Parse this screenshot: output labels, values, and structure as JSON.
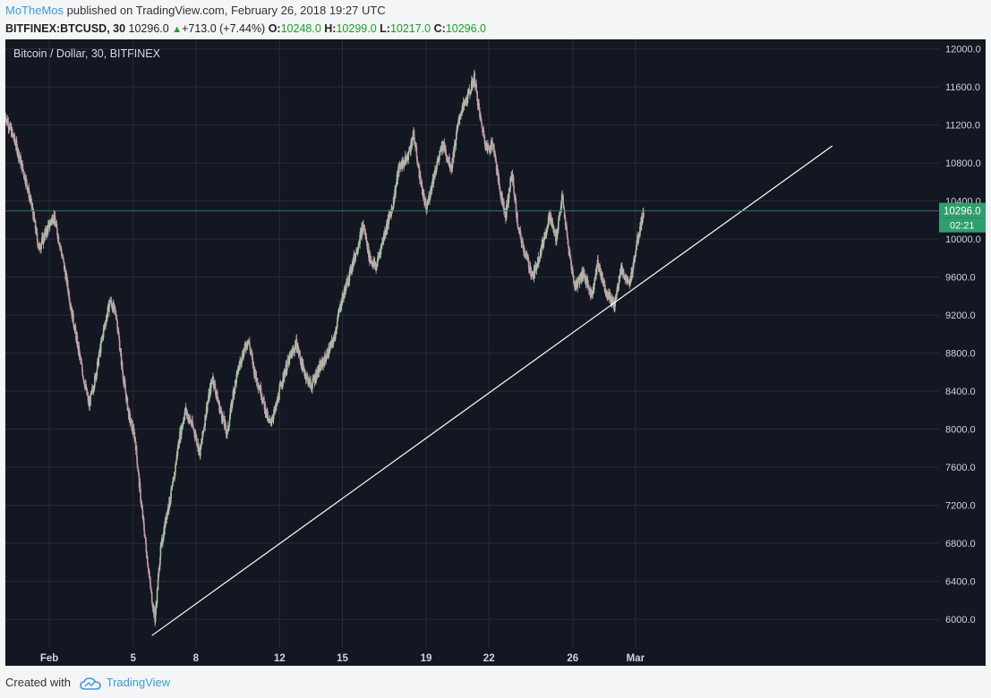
{
  "header": {
    "author": "MoTheMos",
    "published": "published on TradingView.com, February 26, 2018 19:27 UTC",
    "symbol": "BITFINEX:BTCUSD, 30",
    "last": "10296.0",
    "change": "+713.0 (+7.44%)",
    "o_label": "O:",
    "o_value": "10248.0",
    "h_label": "H:",
    "h_value": "10299.0",
    "l_label": "L:",
    "l_value": "10217.0",
    "c_label": "C:",
    "c_value": "10296.0"
  },
  "footer": {
    "created_with": "Created with",
    "brand": "TradingView"
  },
  "chart_data": {
    "type": "candlestick",
    "title": "Bitcoin / Dollar, 30, BITFINEX",
    "price_tag": "10296.0",
    "countdown": "02:21",
    "y_ticks": [
      6000,
      6400,
      6800,
      7200,
      7600,
      8000,
      8400,
      8800,
      9200,
      9600,
      10000,
      10400,
      10800,
      11200,
      11600,
      12000
    ],
    "y_tick_labels": [
      "6000.0",
      "6400.0",
      "6800.0",
      "7200.0",
      "7600.0",
      "8000.0",
      "8400.0",
      "8800.0",
      "9200.0",
      "9600.0",
      "10000.0",
      "10400.0",
      "10800.0",
      "11200.0",
      "11600.0",
      "12000.0"
    ],
    "ylim": [
      5700,
      12100
    ],
    "x_range_days": [
      -2.1,
      42.5
    ],
    "x_ticks": [
      {
        "label": "Feb",
        "day": 0
      },
      {
        "label": "5",
        "day": 4
      },
      {
        "label": "8",
        "day": 7
      },
      {
        "label": "12",
        "day": 11
      },
      {
        "label": "15",
        "day": 14
      },
      {
        "label": "19",
        "day": 18
      },
      {
        "label": "22",
        "day": 21
      },
      {
        "label": "26",
        "day": 25
      },
      {
        "label": "Mar",
        "day": 28
      }
    ],
    "price_path": [
      [
        -2.1,
        11300
      ],
      [
        -1.6,
        11000
      ],
      [
        -1.1,
        10600
      ],
      [
        -0.8,
        10300
      ],
      [
        -0.5,
        9900
      ],
      [
        -0.2,
        10050
      ],
      [
        0.2,
        10250
      ],
      [
        0.5,
        9950
      ],
      [
        0.8,
        9600
      ],
      [
        1.1,
        9200
      ],
      [
        1.5,
        8700
      ],
      [
        1.9,
        8250
      ],
      [
        2.2,
        8550
      ],
      [
        2.6,
        9050
      ],
      [
        2.9,
        9350
      ],
      [
        3.2,
        9200
      ],
      [
        3.5,
        8600
      ],
      [
        3.8,
        8150
      ],
      [
        4.1,
        7900
      ],
      [
        4.35,
        7300
      ],
      [
        4.6,
        6800
      ],
      [
        4.85,
        6300
      ],
      [
        5.05,
        6000
      ],
      [
        5.3,
        6700
      ],
      [
        5.6,
        7100
      ],
      [
        5.9,
        7400
      ],
      [
        6.2,
        7900
      ],
      [
        6.5,
        8200
      ],
      [
        6.9,
        8000
      ],
      [
        7.2,
        7750
      ],
      [
        7.5,
        8200
      ],
      [
        7.8,
        8550
      ],
      [
        8.1,
        8250
      ],
      [
        8.5,
        7950
      ],
      [
        8.8,
        8400
      ],
      [
        9.1,
        8700
      ],
      [
        9.5,
        8950
      ],
      [
        9.8,
        8600
      ],
      [
        10.1,
        8400
      ],
      [
        10.5,
        8050
      ],
      [
        10.8,
        8200
      ],
      [
        11.1,
        8500
      ],
      [
        11.4,
        8700
      ],
      [
        11.8,
        8900
      ],
      [
        12.1,
        8650
      ],
      [
        12.5,
        8450
      ],
      [
        12.8,
        8600
      ],
      [
        13.2,
        8750
      ],
      [
        13.6,
        8950
      ],
      [
        13.9,
        9300
      ],
      [
        14.3,
        9600
      ],
      [
        14.7,
        9900
      ],
      [
        15.0,
        10150
      ],
      [
        15.3,
        9800
      ],
      [
        15.6,
        9700
      ],
      [
        16.0,
        10050
      ],
      [
        16.4,
        10350
      ],
      [
        16.7,
        10750
      ],
      [
        17.1,
        10850
      ],
      [
        17.4,
        11100
      ],
      [
        17.7,
        10650
      ],
      [
        18.0,
        10300
      ],
      [
        18.4,
        10700
      ],
      [
        18.8,
        11000
      ],
      [
        19.2,
        10750
      ],
      [
        19.6,
        11300
      ],
      [
        20.0,
        11500
      ],
      [
        20.3,
        11700
      ],
      [
        20.6,
        11250
      ],
      [
        20.9,
        10950
      ],
      [
        21.2,
        11000
      ],
      [
        21.5,
        10550
      ],
      [
        21.8,
        10250
      ],
      [
        22.1,
        10700
      ],
      [
        22.4,
        10100
      ],
      [
        22.8,
        9800
      ],
      [
        23.1,
        9600
      ],
      [
        23.5,
        9900
      ],
      [
        23.9,
        10250
      ],
      [
        24.2,
        10000
      ],
      [
        24.5,
        10450
      ],
      [
        24.8,
        9900
      ],
      [
        25.1,
        9500
      ],
      [
        25.5,
        9650
      ],
      [
        25.9,
        9400
      ],
      [
        26.2,
        9750
      ],
      [
        26.6,
        9450
      ],
      [
        27.0,
        9300
      ],
      [
        27.3,
        9700
      ],
      [
        27.7,
        9500
      ],
      [
        28.1,
        10000
      ],
      [
        28.4,
        10300
      ]
    ],
    "trendline": {
      "start": [
        4.9,
        5830
      ],
      "end": [
        37.4,
        10980
      ]
    }
  },
  "colors": {
    "background": "#131722",
    "up_candle": "#a8c5a6",
    "down_candle": "#c49aa8",
    "trendline": "#ffffff",
    "price_tag": "#2f9e6f",
    "grid": "#262c3a",
    "axis_text": "#cfd3dc",
    "brand_blue": "#3d9cdf"
  }
}
